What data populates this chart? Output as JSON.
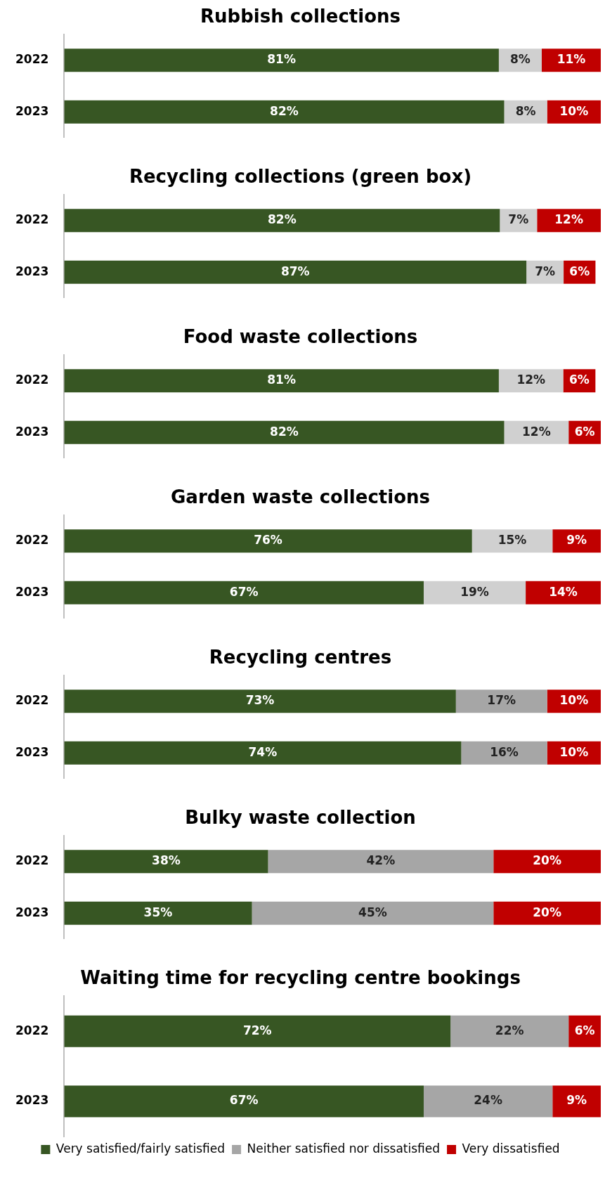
{
  "chart_data": [
    {
      "type": "bar",
      "title": "Rubbish collections",
      "orientation": "horizontal",
      "stacked": true,
      "categories": [
        "2022",
        "2023"
      ],
      "xlim": [
        0,
        100
      ],
      "tick_labels": "y",
      "series": [
        {
          "color": "#375623",
          "values": [
            81,
            82
          ],
          "value_labels": [
            "81%",
            "82%"
          ]
        },
        {
          "color": "#d0d0d0",
          "values": [
            8,
            8
          ],
          "value_labels": [
            "8%",
            "8%"
          ]
        },
        {
          "color": "#c00000",
          "values": [
            11,
            10
          ],
          "value_labels": [
            "11%",
            "10%"
          ]
        }
      ]
    },
    {
      "type": "bar",
      "title": "Recycling collections (green box)",
      "orientation": "horizontal",
      "stacked": true,
      "categories": [
        "2022",
        "2023"
      ],
      "xlim": [
        0,
        101
      ],
      "tick_labels": "y",
      "series": [
        {
          "color": "#375623",
          "values": [
            82,
            87
          ],
          "value_labels": [
            "82%",
            "87%"
          ]
        },
        {
          "color": "#d0d0d0",
          "values": [
            7,
            7
          ],
          "value_labels": [
            "7%",
            "7%"
          ]
        },
        {
          "color": "#c00000",
          "values": [
            12,
            6
          ],
          "value_labels": [
            "12%",
            "6%"
          ]
        }
      ]
    },
    {
      "type": "bar",
      "title": "Food waste collections",
      "orientation": "horizontal",
      "stacked": true,
      "categories": [
        "2022",
        "2023"
      ],
      "xlim": [
        0,
        100
      ],
      "tick_labels": "y",
      "series": [
        {
          "color": "#375623",
          "values": [
            81,
            82
          ],
          "value_labels": [
            "81%",
            "82%"
          ]
        },
        {
          "color": "#d0d0d0",
          "values": [
            12,
            12
          ],
          "value_labels": [
            "12%",
            "12%"
          ]
        },
        {
          "color": "#c00000",
          "values": [
            6,
            6
          ],
          "value_labels": [
            "6%",
            "6%"
          ]
        }
      ]
    },
    {
      "type": "bar",
      "title": "Garden waste collections",
      "orientation": "horizontal",
      "stacked": true,
      "categories": [
        "2022",
        "2023"
      ],
      "xlim": [
        0,
        100
      ],
      "tick_labels": "y",
      "series": [
        {
          "color": "#375623",
          "values": [
            76,
            67
          ],
          "value_labels": [
            "76%",
            "67%"
          ]
        },
        {
          "color": "#d0d0d0",
          "values": [
            15,
            19
          ],
          "value_labels": [
            "15%",
            "19%"
          ]
        },
        {
          "color": "#c00000",
          "values": [
            9,
            14
          ],
          "value_labels": [
            "9%",
            "14%"
          ]
        }
      ]
    },
    {
      "type": "bar",
      "title": "Recycling centres",
      "orientation": "horizontal",
      "stacked": true,
      "categories": [
        "2022",
        "2023"
      ],
      "xlim": [
        0,
        100
      ],
      "tick_labels": "y",
      "series": [
        {
          "color": "#375623",
          "values": [
            73,
            74
          ],
          "value_labels": [
            "73%",
            "74%"
          ]
        },
        {
          "color": "#a6a6a6",
          "values": [
            17,
            16
          ],
          "value_labels": [
            "17%",
            "16%"
          ]
        },
        {
          "color": "#c00000",
          "values": [
            10,
            10
          ],
          "value_labels": [
            "10%",
            "10%"
          ]
        }
      ]
    },
    {
      "type": "bar",
      "title": "Bulky waste collection",
      "orientation": "horizontal",
      "stacked": true,
      "categories": [
        "2022",
        "2023"
      ],
      "xlim": [
        0,
        100
      ],
      "tick_labels": "y",
      "series": [
        {
          "color": "#375623",
          "values": [
            38,
            35
          ],
          "value_labels": [
            "38%",
            "35%"
          ]
        },
        {
          "color": "#a6a6a6",
          "values": [
            42,
            45
          ],
          "value_labels": [
            "42%",
            "45%"
          ]
        },
        {
          "color": "#c00000",
          "values": [
            20,
            20
          ],
          "value_labels": [
            "20%",
            "20%"
          ]
        }
      ]
    },
    {
      "type": "bar",
      "title": "Waiting time for recycling centre bookings",
      "orientation": "horizontal",
      "stacked": true,
      "categories": [
        "2022",
        "2023"
      ],
      "xlim": [
        0,
        100
      ],
      "tick_labels": "y",
      "legend": "bottom",
      "series": [
        {
          "name": "Very satisfied/fairly satisfied",
          "color": "#375623",
          "values": [
            72,
            67
          ],
          "value_labels": [
            "72%",
            "67%"
          ]
        },
        {
          "name": "Neither satisfied nor dissatisfied",
          "color": "#a6a6a6",
          "values": [
            22,
            24
          ],
          "value_labels": [
            "22%",
            "24%"
          ]
        },
        {
          "name": "Very dissatisfied",
          "color": "#c00000",
          "values": [
            6,
            9
          ],
          "value_labels": [
            "6%",
            "9%"
          ]
        }
      ]
    }
  ]
}
